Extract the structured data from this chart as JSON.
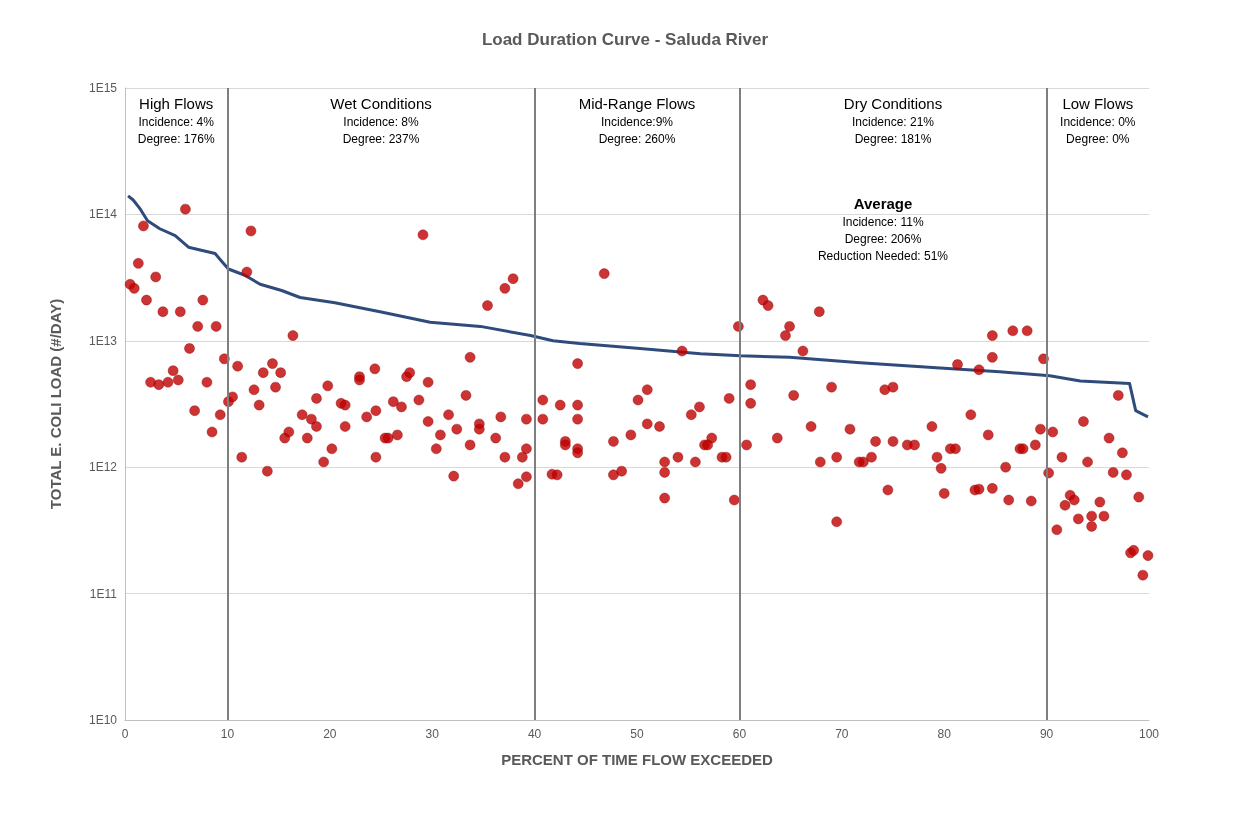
{
  "chart_data": {
    "type": "scatter",
    "title": "Load Duration Curve - Saluda River",
    "xlabel": "PERCENT OF TIME FLOW EXCEEDED",
    "ylabel": "TOTAL E. COLI LOAD (#/DAY)",
    "log": "y",
    "grid": "y",
    "marker": "circle",
    "xlim": [
      0,
      100
    ],
    "xticks": [
      0,
      10,
      20,
      30,
      40,
      50,
      60,
      70,
      80,
      90,
      100
    ],
    "ylim": [
      10000000000.0,
      1000000000000000.0
    ],
    "yticks": [
      {
        "value": 10000000000.0,
        "label": "1E10"
      },
      {
        "value": 100000000000.0,
        "label": "1E11"
      },
      {
        "value": 1000000000000.0,
        "label": "1E12"
      },
      {
        "value": 10000000000000.0,
        "label": "1E13"
      },
      {
        "value": 100000000000000.0,
        "label": "1E14"
      },
      {
        "value": 1000000000000000.0,
        "label": "1E15"
      }
    ],
    "ref_lines": [
      {
        "axis": "x",
        "value": 10,
        "color": "#7f7f7f"
      },
      {
        "axis": "x",
        "value": 40,
        "color": "#7f7f7f"
      },
      {
        "axis": "x",
        "value": 60,
        "color": "#7f7f7f"
      },
      {
        "axis": "x",
        "value": 90,
        "color": "#7f7f7f"
      }
    ],
    "annotations": [
      "High Flows\nIncidence: 4%\nDegree: 176%",
      "Wet Conditions\nIncidence: 8%\nDegree: 237%",
      "Mid-Range Flows\nIncidence:9%\nDegree: 260%",
      "Dry Conditions\nIncidence: 21%\nDegree: 181%",
      "Low Flows\nIncidence: 0%\nDegree: 0%",
      "Average\nIncidence: 11%\nDegree: 206%\nReduction Needed: 51%"
    ],
    "series": [
      {
        "type": "line",
        "color": "#2f4b7c",
        "marker": "none",
        "x": [
          0.3,
          0.8,
          1.5,
          2.2,
          3.4,
          4.9,
          6.2,
          8.8,
          9.5,
          10.1,
          11.7,
          13.2,
          15.3,
          17.1,
          20.5,
          24.9,
          29.8,
          34.7,
          39.6,
          41.8,
          44.4,
          50.3,
          56.2,
          60.1,
          64.9,
          71.8,
          79.6,
          85.4,
          90.3,
          93.3,
          98.1,
          98.7,
          99.9
        ],
        "values": [
          140000000000000.0,
          130000000000000.0,
          110000000000000.0,
          89000000000000.0,
          77000000000000.0,
          68000000000000.0,
          55000000000000.0,
          49000000000000.0,
          42000000000000.0,
          37000000000000.0,
          33000000000000.0,
          28000000000000.0,
          25000000000000.0,
          22000000000000.0,
          20000000000000.0,
          17000000000000.0,
          14000000000000.0,
          13000000000000.0,
          11000000000000.0,
          10000000000000.0,
          9500000000000.0,
          8700000000000.0,
          7900000000000.0,
          7600000000000.0,
          7400000000000.0,
          6700000000000.0,
          6100000000000.0,
          5700000000000.0,
          5300000000000.0,
          4800000000000.0,
          4600000000000.0,
          2800000000000.0,
          2500000000000.0
        ]
      },
      {
        "color": "#c00000",
        "x": [
          0.5,
          0.9,
          1.3,
          1.8,
          3.0,
          2.1,
          3.7,
          5.4,
          5.9,
          7.1,
          7.6,
          8.9,
          6.3,
          9.7,
          2.5,
          3.3,
          4.2,
          4.7,
          5.2,
          8.0,
          6.8,
          8.5,
          9.3,
          10.1,
          10.5,
          11.0,
          11.9,
          12.3,
          11.4,
          12.6,
          13.1,
          13.5,
          14.4,
          14.7,
          15.2,
          13.9,
          16.4,
          15.6,
          16.0,
          17.3,
          17.8,
          18.2,
          18.7,
          18.7,
          19.8,
          19.4,
          20.2,
          21.1,
          21.5,
          21.5,
          22.9,
          22.9,
          23.6,
          24.4,
          24.5,
          24.5,
          25.4,
          29.1,
          35.4,
          37.1,
          37.9,
          46.8,
          33.7,
          44.2,
          27.5,
          27.8,
          29.6,
          28.7,
          33.3,
          26.2,
          27.0,
          40.8,
          42.5,
          44.2,
          50.1,
          29.6,
          31.6,
          32.4,
          34.6,
          34.6,
          36.7,
          39.2,
          40.8,
          44.2,
          25.7,
          26.6,
          30.8,
          30.4,
          33.7,
          36.2,
          37.1,
          38.8,
          39.2,
          43.0,
          43.0,
          44.2,
          44.2,
          47.7,
          49.4,
          32.1,
          38.4,
          39.2,
          41.7,
          42.2,
          47.7,
          48.5,
          54.4,
          59.9,
          62.3,
          62.8,
          67.8,
          64.9,
          64.5,
          66.2,
          51.0,
          61.1,
          61.1,
          59.0,
          65.3,
          69.0,
          74.2,
          75.0,
          55.3,
          56.1,
          51.0,
          52.2,
          57.3,
          56.6,
          56.9,
          60.7,
          63.7,
          67.0,
          70.8,
          73.3,
          75.0,
          52.7,
          52.7,
          54.0,
          55.7,
          58.3,
          58.7,
          67.9,
          69.5,
          71.7,
          72.1,
          72.9,
          52.7,
          59.5,
          74.5,
          69.5,
          84.7,
          86.7,
          88.1,
          84.7,
          89.7,
          81.3,
          83.4,
          97.0,
          82.6,
          78.8,
          84.3,
          76.4,
          77.1,
          80.6,
          81.1,
          87.4,
          87.7,
          88.9,
          89.4,
          90.6,
          93.6,
          96.1,
          97.4,
          91.5,
          94.0,
          79.3,
          79.7,
          86.0,
          90.2,
          96.5,
          97.8,
          80.0,
          83.0,
          83.4,
          84.7,
          86.3,
          88.5,
          92.3,
          92.7,
          91.8,
          95.2,
          99.0,
          91.0,
          93.1,
          94.4,
          94.4,
          95.6,
          98.2,
          98.5,
          99.9,
          99.4
        ],
        "values": [
          28000000000000.0,
          26000000000000.0,
          41000000000000.0,
          81000000000000.0,
          32000000000000.0,
          21000000000000.0,
          17000000000000.0,
          17000000000000.0,
          110000000000000.0,
          13000000000000.0,
          21000000000000.0,
          13000000000000.0,
          8700000000000.0,
          7200000000000.0,
          4700000000000.0,
          4500000000000.0,
          4700000000000.0,
          5800000000000.0,
          4900000000000.0,
          4700000000000.0,
          2800000000000.0,
          1900000000000.0,
          2600000000000.0,
          3300000000000.0,
          3600000000000.0,
          6300000000000.0,
          35000000000000.0,
          74000000000000.0,
          1200000000000.0,
          4100000000000.0,
          3100000000000.0,
          5600000000000.0,
          6600000000000.0,
          4300000000000.0,
          5600000000000.0,
          930000000000.0,
          11000000000000.0,
          1700000000000.0,
          1900000000000.0,
          2600000000000.0,
          1700000000000.0,
          2400000000000.0,
          2100000000000.0,
          3500000000000.0,
          4400000000000.0,
          1100000000000.0,
          1400000000000.0,
          3200000000000.0,
          3100000000000.0,
          2100000000000.0,
          5200000000000.0,
          4900000000000.0,
          2500000000000.0,
          6000000000000.0,
          2800000000000.0,
          1200000000000.0,
          1700000000000.0,
          69000000000000.0,
          19000000000000.0,
          26000000000000.0,
          31000000000000.0,
          34000000000000.0,
          7400000000000.0,
          6600000000000.0,
          5200000000000.0,
          5600000000000.0,
          4700000000000.0,
          3400000000000.0,
          3700000000000.0,
          3300000000000.0,
          3000000000000.0,
          3400000000000.0,
          3100000000000.0,
          3100000000000.0,
          3400000000000.0,
          2300000000000.0,
          2600000000000.0,
          2000000000000.0,
          2200000000000.0,
          2000000000000.0,
          2500000000000.0,
          2400000000000.0,
          2400000000000.0,
          2400000000000.0,
          1700000000000.0,
          1800000000000.0,
          1800000000000.0,
          1400000000000.0,
          1500000000000.0,
          1700000000000.0,
          1200000000000.0,
          1200000000000.0,
          1400000000000.0,
          1600000000000.0,
          1500000000000.0,
          1400000000000.0,
          1300000000000.0,
          1600000000000.0,
          1800000000000.0,
          850000000000.0,
          740000000000.0,
          840000000000.0,
          880000000000.0,
          870000000000.0,
          870000000000.0,
          930000000000.0,
          8300000000000.0,
          13000000000000.0,
          21000000000000.0,
          19000000000000.0,
          17000000000000.0,
          13000000000000.0,
          11000000000000.0,
          8300000000000.0,
          4100000000000.0,
          4500000000000.0,
          3200000000000.0,
          3500000000000.0,
          3700000000000.0,
          4300000000000.0,
          4100000000000.0,
          4300000000000.0,
          2600000000000.0,
          3000000000000.0,
          2200000000000.0,
          2100000000000.0,
          1700000000000.0,
          1500000000000.0,
          1500000000000.0,
          1500000000000.0,
          1700000000000.0,
          2100000000000.0,
          2000000000000.0,
          1600000000000.0,
          1600000000000.0,
          1100000000000.0,
          910000000000.0,
          1200000000000.0,
          1100000000000.0,
          1200000000000.0,
          1200000000000.0,
          1100000000000.0,
          1200000000000.0,
          1100000000000.0,
          1100000000000.0,
          1200000000000.0,
          570000000000.0,
          550000000000.0,
          660000000000.0,
          370000000000.0,
          11000000000000.0,
          12000000000000.0,
          12000000000000.0,
          7400000000000.0,
          7200000000000.0,
          6500000000000.0,
          5900000000000.0,
          3700000000000.0,
          2600000000000.0,
          2100000000000.0,
          1800000000000.0,
          1500000000000.0,
          1500000000000.0,
          1400000000000.0,
          1400000000000.0,
          1400000000000.0,
          1400000000000.0,
          1500000000000.0,
          2000000000000.0,
          1900000000000.0,
          2300000000000.0,
          1700000000000.0,
          1300000000000.0,
          1200000000000.0,
          1100000000000.0,
          1200000000000.0,
          980000000000.0,
          1000000000000.0,
          900000000000.0,
          910000000000.0,
          870000000000.0,
          620000000000.0,
          660000000000.0,
          670000000000.0,
          680000000000.0,
          550000000000.0,
          540000000000.0,
          600000000000.0,
          550000000000.0,
          500000000000.0,
          530000000000.0,
          580000000000.0,
          320000000000.0,
          390000000000.0,
          410000000000.0,
          340000000000.0,
          410000000000.0,
          210000000000.0,
          220000000000.0,
          200000000000.0,
          140000000000.0
        ]
      }
    ]
  }
}
